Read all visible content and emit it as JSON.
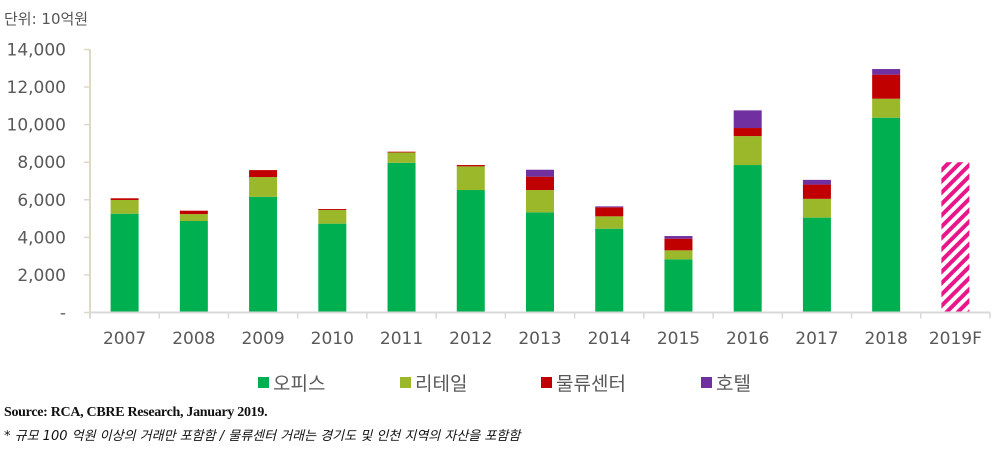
{
  "unit_label": "단위: 10억원",
  "source": "Source: RCA, CBRE Research, January 2019.",
  "footnote": "* 규모 100 억원 이상의 거래만 포함함 / 물류센터 거래는 경기도 및 인천 지역의 자산을 포함함",
  "legend": [
    {
      "label": "오피스",
      "color": "#00AF50"
    },
    {
      "label": "리테일",
      "color": "#9BB72A"
    },
    {
      "label": "물류센터",
      "color": "#C00000"
    },
    {
      "label": "호텔",
      "color": "#7030A0"
    }
  ],
  "chart_data": {
    "type": "bar",
    "stacked": true,
    "title": "",
    "unit": "단위: 10억원",
    "xlabel": "",
    "ylabel": "",
    "ylim": [
      0,
      14000
    ],
    "yticks": [
      0,
      2000,
      4000,
      6000,
      8000,
      10000,
      12000,
      14000
    ],
    "ytick_labels": [
      "-",
      "2,000",
      "4,000",
      "6,000",
      "8,000",
      "10,000",
      "12,000",
      "14,000"
    ],
    "grid": false,
    "legend_position": "bottom",
    "categories": [
      "2007",
      "2008",
      "2009",
      "2010",
      "2011",
      "2012",
      "2013",
      "2014",
      "2015",
      "2016",
      "2017",
      "2018",
      "2019F"
    ],
    "series": [
      {
        "name": "오피스",
        "color": "#00AF50",
        "values": [
          5260,
          4870,
          6160,
          4730,
          7970,
          6520,
          5330,
          4460,
          2830,
          7850,
          5050,
          10370,
          null
        ]
      },
      {
        "name": "리테일",
        "color": "#9BB72A",
        "values": [
          730,
          370,
          1050,
          730,
          550,
          1260,
          1190,
          660,
          480,
          1540,
          1000,
          1010,
          null
        ]
      },
      {
        "name": "물류센터",
        "color": "#C00000",
        "values": [
          90,
          180,
          370,
          50,
          40,
          70,
          710,
          480,
          620,
          430,
          760,
          1280,
          null
        ]
      },
      {
        "name": "호텔",
        "color": "#7030A0",
        "values": [
          0,
          0,
          0,
          0,
          0,
          0,
          370,
          50,
          140,
          940,
          250,
          300,
          null
        ]
      }
    ],
    "forecast": {
      "category": "2019F",
      "value": 8000,
      "color": "#E8168A",
      "pattern": "diagonal-hatch"
    }
  }
}
